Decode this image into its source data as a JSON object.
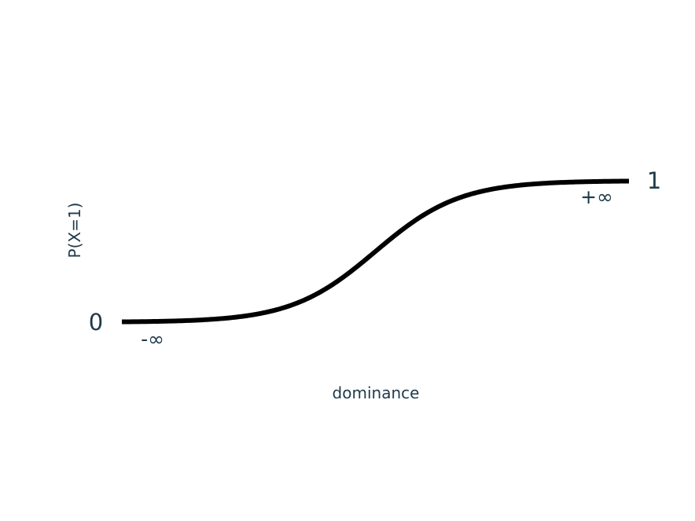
{
  "chart_data": {
    "type": "line",
    "title": "",
    "xlabel": "dominance",
    "ylabel": "P(X=1)",
    "function": "logistic",
    "xlim": [
      -6,
      6
    ],
    "ylim": [
      0,
      1
    ],
    "grid": false,
    "legend": "none",
    "x_ticks": [
      {
        "value": -6,
        "label": "-∞"
      },
      {
        "value": 6,
        "label": "+∞"
      }
    ],
    "y_ticks": [
      {
        "value": 0,
        "label": "0"
      },
      {
        "value": 1,
        "label": "1"
      }
    ],
    "series": [
      {
        "color": "#000000",
        "x": [
          -6,
          -5,
          -4,
          -3,
          -2,
          -1,
          0,
          1,
          2,
          3,
          4,
          5,
          6
        ],
        "y": [
          0.0025,
          0.0067,
          0.018,
          0.047,
          0.119,
          0.269,
          0.5,
          0.731,
          0.881,
          0.953,
          0.982,
          0.9933,
          0.9975
        ]
      }
    ]
  },
  "colors": {
    "text": "#1f3a4a",
    "curve": "#000000",
    "background": "#ffffff"
  }
}
